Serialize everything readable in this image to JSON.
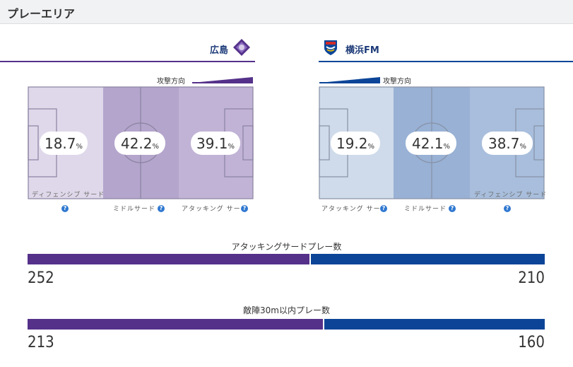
{
  "header": {
    "title": "プレーエリア"
  },
  "teams": {
    "home": {
      "name": "広島",
      "emblem_icon": "sanfrecce-emblem-icon",
      "color": "#55318a"
    },
    "away": {
      "name": "横浜FM",
      "emblem_icon": "marinos-emblem-icon",
      "color": "#0c4598"
    }
  },
  "attack_direction_label": "攻撃方向",
  "zone_names": {
    "defensive": "ディフェンシブ サード",
    "middle": "ミドルサード",
    "attacking": "アタッキング サード"
  },
  "help_icon": "?",
  "pct_unit": "%",
  "chart_data": [
    {
      "type": "heatmap",
      "team": "広島",
      "zones": [
        "ディフェンシブ サード",
        "ミドルサード",
        "アタッキング サード"
      ],
      "values": [
        18.7,
        42.2,
        39.1
      ],
      "direction": "left-to-right"
    },
    {
      "type": "heatmap",
      "team": "横浜FM",
      "zones": [
        "アタッキング サード",
        "ミドルサード",
        "ディフェンシブ サード"
      ],
      "values": [
        19.2,
        42.1,
        38.7
      ],
      "direction": "right-to-left"
    },
    {
      "type": "bar",
      "title": "アタッキングサードプレー数",
      "series": [
        {
          "name": "広島",
          "value": 252
        },
        {
          "name": "横浜FM",
          "value": 210
        }
      ]
    },
    {
      "type": "bar",
      "title": "敵陣30m以内プレー数",
      "series": [
        {
          "name": "広島",
          "value": 213
        },
        {
          "name": "横浜FM",
          "value": 160
        }
      ]
    }
  ],
  "display": {
    "home_pcts": [
      "18.7",
      "42.2",
      "39.1"
    ],
    "away_pcts": [
      "19.2",
      "42.1",
      "38.7"
    ],
    "stat1": {
      "home": "252",
      "away": "210"
    },
    "stat2": {
      "home": "213",
      "away": "160"
    }
  }
}
